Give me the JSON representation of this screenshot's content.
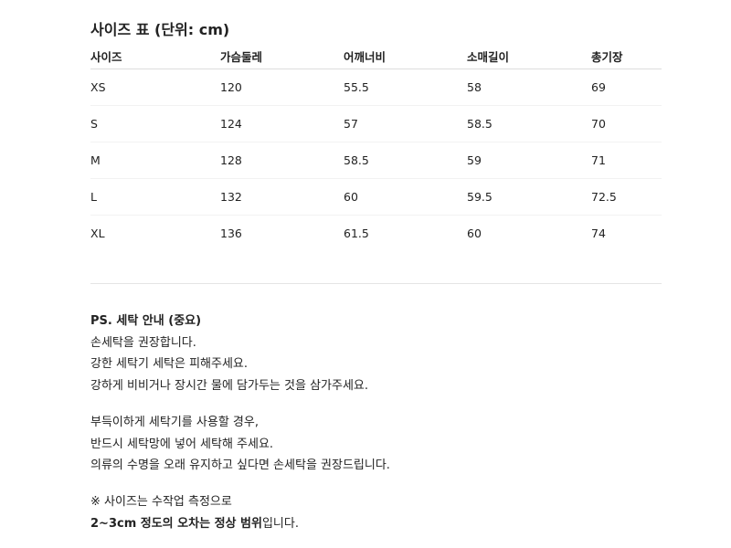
{
  "title": "사이즈 표 (단위: cm)",
  "table": {
    "headers": [
      "사이즈",
      "가슴둘레",
      "어깨너비",
      "소매길이",
      "총기장"
    ],
    "rows": [
      [
        "XS",
        "120",
        "55.5",
        "58",
        "69"
      ],
      [
        "S",
        "124",
        "57",
        "58.5",
        "70"
      ],
      [
        "M",
        "128",
        "58.5",
        "59",
        "71"
      ],
      [
        "L",
        "132",
        "60",
        "59.5",
        "72.5"
      ],
      [
        "XL",
        "136",
        "61.5",
        "60",
        "74"
      ]
    ]
  },
  "notes": {
    "heading": "PS. 세탁 안내 (중요)",
    "group1": [
      "손세탁을 권장합니다.",
      "강한 세탁기 세탁은 피해주세요.",
      "강하게 비비거나 장시간 물에 담가두는 것을 삼가주세요."
    ],
    "group2": [
      "부득이하게 세탁기를 사용할 경우,",
      "반드시 세탁망에 넣어 세탁해 주세요.",
      "의류의 수명을 오래 유지하고 싶다면 손세탁을 권장드립니다."
    ],
    "size_note": "※ 사이즈는 수작업 측정으로",
    "size_note_bold": "2~3cm 정도의 오차는 정상 범위",
    "size_note_end": "입니다."
  }
}
